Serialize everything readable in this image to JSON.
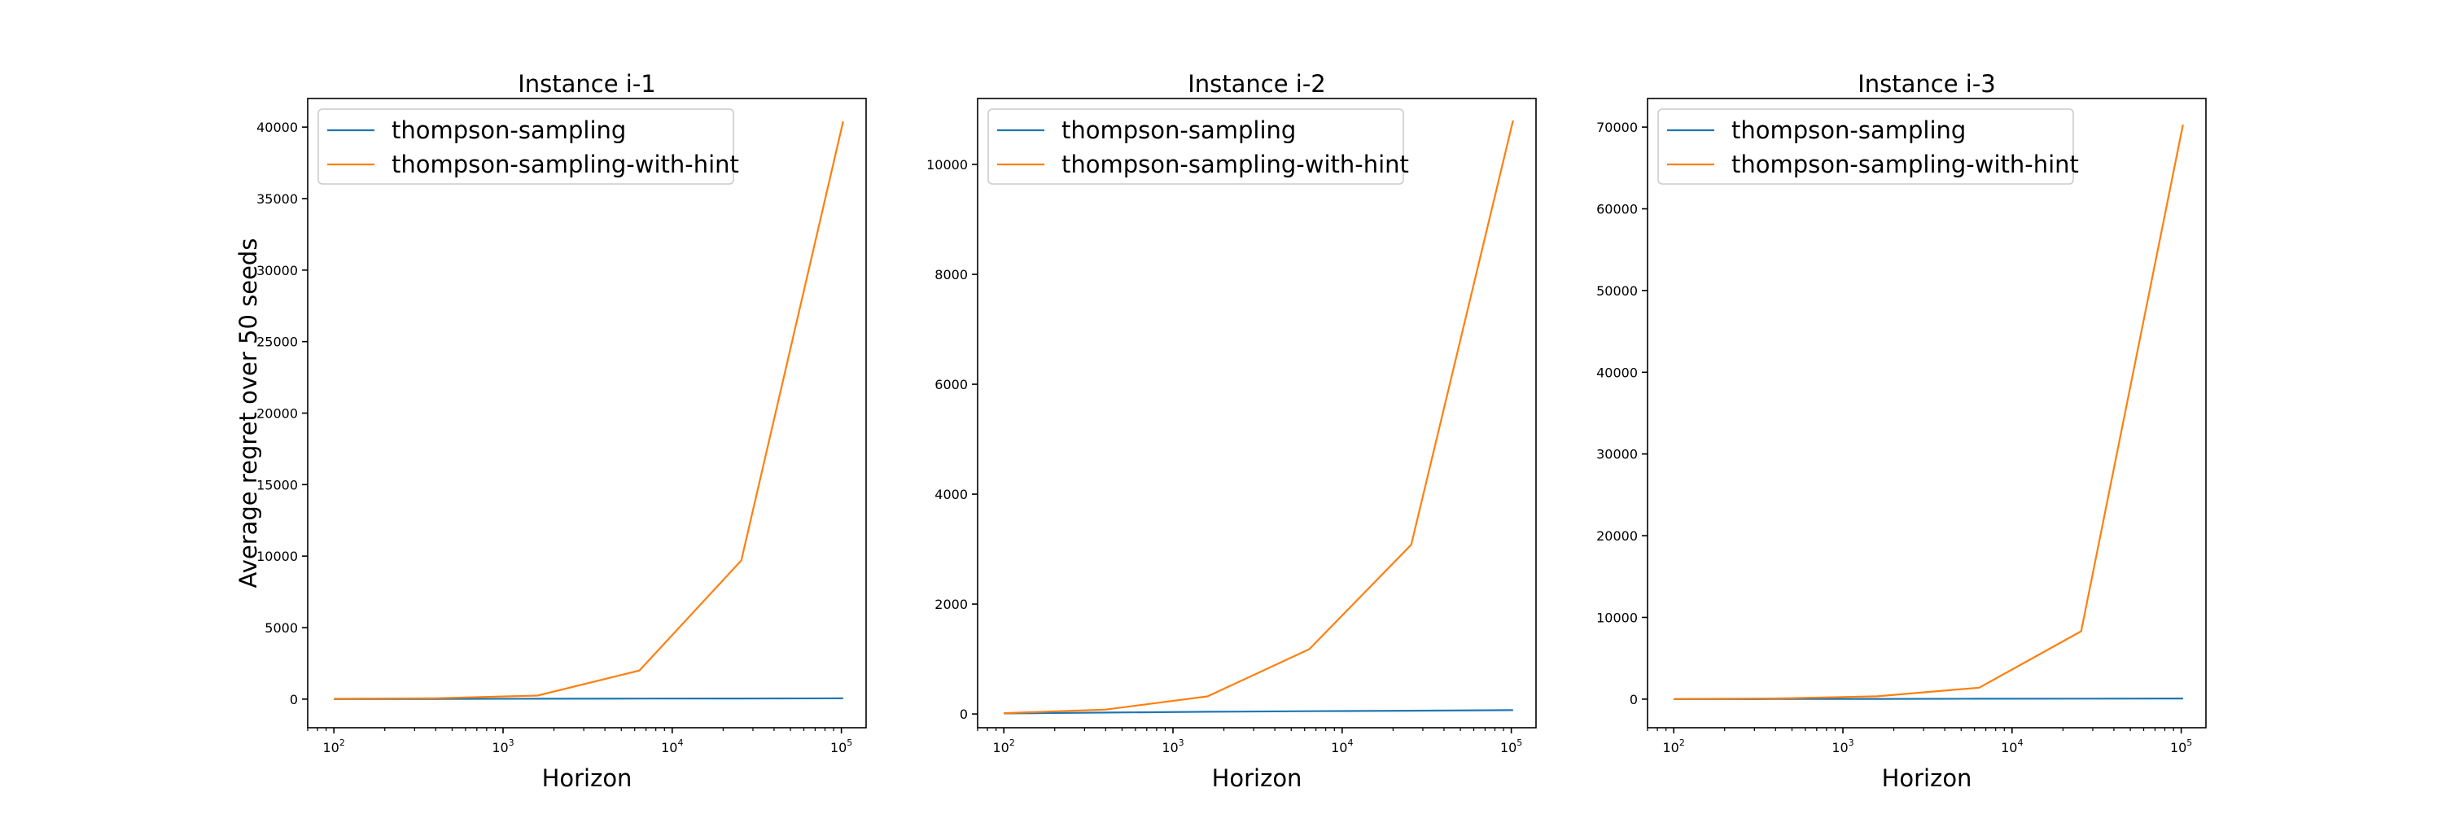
{
  "colors": {
    "thompson_sampling": "#1f77b4",
    "thompson_sampling_with_hint": "#ff7f0e"
  },
  "chart_data": [
    {
      "type": "line",
      "title": "Instance i-1",
      "xlabel": "Horizon",
      "ylabel": "Average regret over 50 seeds",
      "xscale": "log",
      "xlim": [
        70,
        140000
      ],
      "ylim": [
        -2000,
        42000
      ],
      "xticks": [
        100,
        1000,
        10000,
        100000
      ],
      "xtick_labels": [
        {
          "base": "10",
          "exp": "2"
        },
        {
          "base": "10",
          "exp": "3"
        },
        {
          "base": "10",
          "exp": "4"
        },
        {
          "base": "10",
          "exp": "5"
        }
      ],
      "yticks": [
        0,
        5000,
        10000,
        15000,
        20000,
        25000,
        30000,
        35000,
        40000
      ],
      "ytick_labels": [
        "0",
        "5000",
        "10000",
        "15000",
        "20000",
        "25000",
        "30000",
        "35000",
        "40000"
      ],
      "legend_position": "top-left",
      "grid": false,
      "x": [
        100,
        400,
        1600,
        6400,
        25600,
        102400
      ],
      "series": [
        {
          "name": "thompson-sampling",
          "color_key": "thompson_sampling",
          "values": [
            5,
            15,
            25,
            35,
            45,
            55
          ]
        },
        {
          "name": "thompson-sampling-with-hint",
          "color_key": "thompson_sampling_with_hint",
          "values": [
            20,
            60,
            250,
            2000,
            9700,
            40400
          ]
        }
      ]
    },
    {
      "type": "line",
      "title": "Instance i-2",
      "xlabel": "Horizon",
      "ylabel": "",
      "xscale": "log",
      "xlim": [
        70,
        140000
      ],
      "ylim": [
        -250,
        11200
      ],
      "xticks": [
        100,
        1000,
        10000,
        100000
      ],
      "xtick_labels": [
        {
          "base": "10",
          "exp": "2"
        },
        {
          "base": "10",
          "exp": "3"
        },
        {
          "base": "10",
          "exp": "4"
        },
        {
          "base": "10",
          "exp": "5"
        }
      ],
      "yticks": [
        0,
        2000,
        4000,
        6000,
        8000,
        10000
      ],
      "ytick_labels": [
        "0",
        "2000",
        "4000",
        "6000",
        "8000",
        "10000"
      ],
      "legend_position": "top-left",
      "grid": false,
      "x": [
        100,
        400,
        1600,
        6400,
        25600,
        102400
      ],
      "series": [
        {
          "name": "thompson-sampling",
          "color_key": "thompson_sampling",
          "values": [
            10,
            25,
            40,
            50,
            60,
            70
          ]
        },
        {
          "name": "thompson-sampling-with-hint",
          "color_key": "thompson_sampling_with_hint",
          "values": [
            15,
            80,
            320,
            1180,
            3080,
            10800
          ]
        }
      ]
    },
    {
      "type": "line",
      "title": "Instance i-3",
      "xlabel": "Horizon",
      "ylabel": "",
      "xscale": "log",
      "xlim": [
        70,
        140000
      ],
      "ylim": [
        -3500,
        73500
      ],
      "xticks": [
        100,
        1000,
        10000,
        100000
      ],
      "xtick_labels": [
        {
          "base": "10",
          "exp": "2"
        },
        {
          "base": "10",
          "exp": "3"
        },
        {
          "base": "10",
          "exp": "4"
        },
        {
          "base": "10",
          "exp": "5"
        }
      ],
      "yticks": [
        0,
        10000,
        20000,
        30000,
        40000,
        50000,
        60000,
        70000
      ],
      "ytick_labels": [
        "0",
        "10000",
        "20000",
        "30000",
        "40000",
        "50000",
        "60000",
        "70000"
      ],
      "legend_position": "top-left",
      "grid": false,
      "x": [
        100,
        400,
        1600,
        6400,
        25600,
        102400
      ],
      "series": [
        {
          "name": "thompson-sampling",
          "color_key": "thompson_sampling",
          "values": [
            5,
            15,
            30,
            45,
            60,
            75
          ]
        },
        {
          "name": "thompson-sampling-with-hint",
          "color_key": "thompson_sampling_with_hint",
          "values": [
            20,
            80,
            350,
            1400,
            8300,
            70300
          ]
        }
      ]
    }
  ]
}
